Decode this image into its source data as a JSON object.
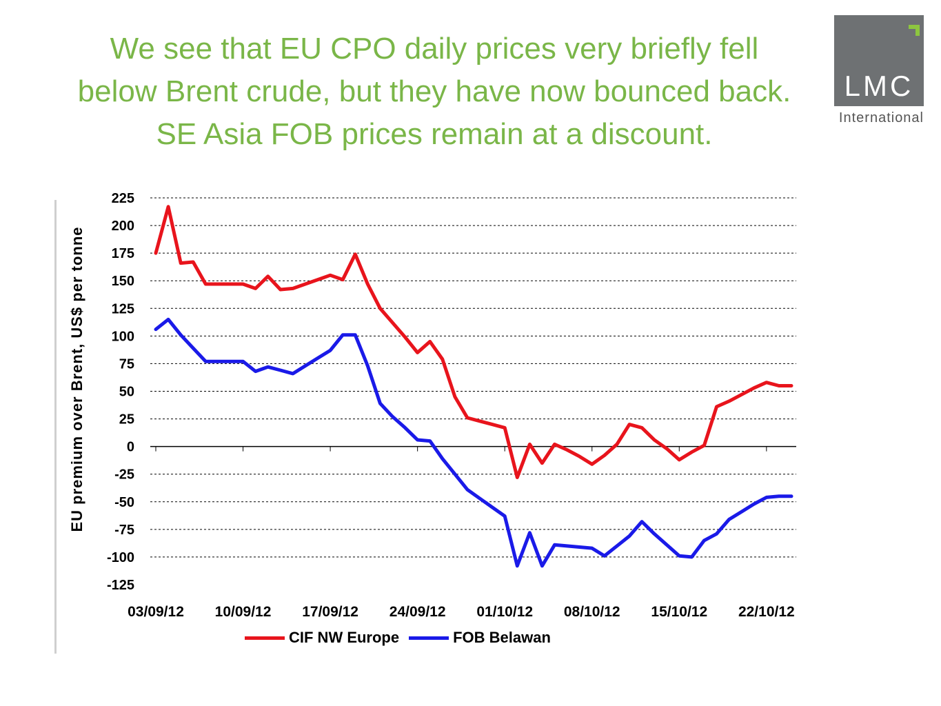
{
  "title_lines": [
    "We see that EU CPO daily prices very briefly fell",
    "below Brent crude, but they have now bounced back.",
    "SE Asia FOB prices remain at a discount."
  ],
  "logo": {
    "text": "LMC",
    "subtitle": "International"
  },
  "colors": {
    "title": "#7ab648",
    "logo_box": "#6e7173",
    "logo_accent": "#8dc63f"
  },
  "chart_data": {
    "type": "line",
    "ylabel": "EU premium over Brent, US$ per tonne",
    "xlabel": "",
    "ylim": [
      -125,
      225
    ],
    "y_ticks": [
      225,
      200,
      175,
      150,
      125,
      100,
      75,
      50,
      25,
      0,
      -25,
      -50,
      -75,
      -100,
      -125
    ],
    "x_ticks": [
      "03/09/12",
      "10/09/12",
      "17/09/12",
      "24/09/12",
      "01/10/12",
      "08/10/12",
      "15/10/12",
      "22/10/12"
    ],
    "x_day_range": [
      0,
      51
    ],
    "grid": true,
    "legend_position": "bottom",
    "series": [
      {
        "name": "CIF NW Europe",
        "color": "#e8141c",
        "x": [
          0,
          1,
          2,
          3,
          4,
          5,
          6,
          7,
          8,
          9,
          10,
          11,
          12,
          13,
          14,
          15,
          16,
          17,
          18,
          19,
          20,
          21,
          22,
          23,
          24,
          25,
          26,
          27,
          28,
          29,
          30,
          31,
          32,
          33,
          34,
          35,
          36,
          37,
          38,
          39,
          40,
          41,
          42,
          43,
          44,
          45,
          46,
          47,
          48,
          49,
          50,
          51
        ],
        "values": [
          175,
          217,
          166,
          167,
          147,
          147,
          147,
          147,
          143,
          154,
          142,
          143,
          147,
          151,
          155,
          151,
          174,
          147,
          125,
          112,
          99,
          85,
          95,
          79,
          45,
          26,
          23,
          20,
          17,
          -28,
          2,
          -15,
          2,
          -3,
          -9,
          -16,
          -8,
          2,
          20,
          17,
          6,
          -2,
          -12,
          -5,
          1,
          36,
          41,
          47,
          53,
          58,
          55,
          55
        ]
      },
      {
        "name": "FOB Belawan",
        "color": "#1a1ae8",
        "x": [
          0,
          1,
          2,
          3,
          4,
          5,
          6,
          7,
          8,
          9,
          10,
          11,
          12,
          13,
          14,
          15,
          16,
          17,
          18,
          19,
          20,
          21,
          22,
          23,
          24,
          25,
          26,
          27,
          28,
          29,
          30,
          31,
          32,
          33,
          34,
          35,
          36,
          37,
          38,
          39,
          40,
          41,
          42,
          43,
          44,
          45,
          46,
          47,
          48,
          49,
          50,
          51
        ],
        "values": [
          106,
          115,
          101,
          89,
          77,
          77,
          77,
          77,
          68,
          72,
          69,
          66,
          73,
          80,
          87,
          101,
          101,
          73,
          39,
          27,
          17,
          6,
          5,
          -11,
          -25,
          -39,
          -47,
          -55,
          -63,
          -108,
          -78,
          -108,
          -89,
          -90,
          -91,
          -92,
          -99,
          -90,
          -81,
          -68,
          -79,
          -89,
          -99,
          -100,
          -85,
          -79,
          -66,
          -59,
          -52,
          -46,
          -45,
          -45
        ]
      }
    ]
  }
}
